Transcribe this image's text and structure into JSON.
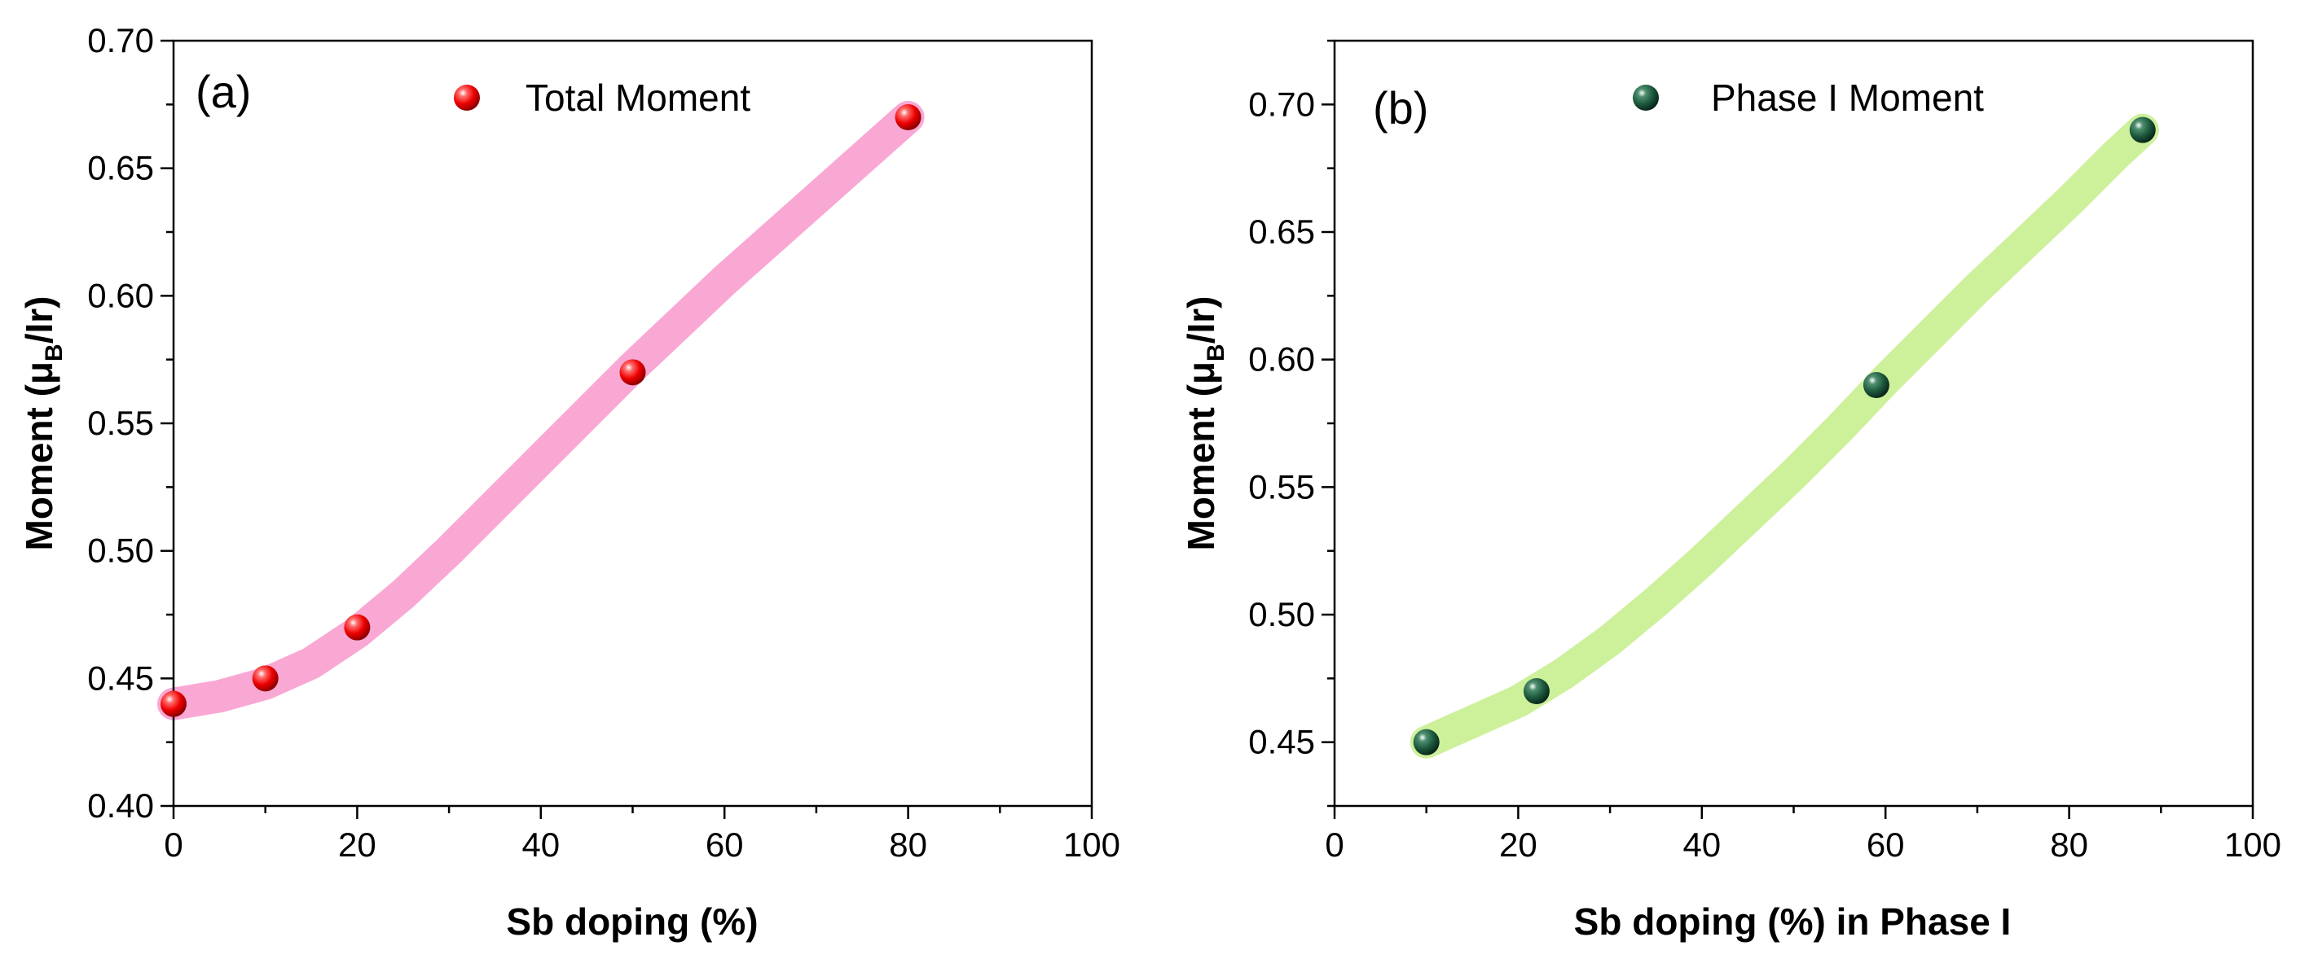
{
  "chart_data": [
    {
      "type": "scatter",
      "panel_label": "(a)",
      "legend": "Total Moment",
      "xlabel": "Sb doping (%)",
      "ylabel": "Moment (μB/Ir)",
      "ylabel_parts": {
        "main": "Moment (μ",
        "sub": "B",
        "tail": "/Ir)"
      },
      "xlim": [
        0,
        100
      ],
      "ylim": [
        0.4,
        0.7
      ],
      "xticks": [
        0,
        20,
        40,
        60,
        80,
        100
      ],
      "xtick_labels": [
        "0",
        "20",
        "40",
        "60",
        "80",
        "100"
      ],
      "yticks": [
        0.4,
        0.45,
        0.5,
        0.55,
        0.6,
        0.65,
        0.7
      ],
      "ytick_labels": [
        "0.40",
        "0.45",
        "0.50",
        "0.55",
        "0.60",
        "0.65",
        "0.70"
      ],
      "x": [
        0,
        10,
        20,
        50,
        80
      ],
      "y": [
        0.44,
        0.45,
        0.47,
        0.57,
        0.67
      ],
      "trend": {
        "x": [
          0,
          5,
          10,
          15,
          20,
          25,
          30,
          35,
          40,
          45,
          50,
          55,
          60,
          65,
          70,
          75,
          80
        ],
        "y": [
          0.44,
          0.443,
          0.448,
          0.456,
          0.468,
          0.483,
          0.5,
          0.518,
          0.536,
          0.554,
          0.572,
          0.589,
          0.606,
          0.622,
          0.638,
          0.654,
          0.67
        ]
      },
      "marker_color": "#ff1a1a",
      "band_color": "#f9a8d4"
    },
    {
      "type": "scatter",
      "panel_label": "(b)",
      "legend": "Phase I Moment",
      "xlabel": "Sb doping (%) in Phase I",
      "ylabel": "Moment (μB/Ir)",
      "ylabel_parts": {
        "main": "Moment (μ",
        "sub": "B",
        "tail": "/Ir)"
      },
      "xlim": [
        0,
        100
      ],
      "ylim": [
        0.425,
        0.725
      ],
      "xticks": [
        0,
        20,
        40,
        60,
        80,
        100
      ],
      "xtick_labels": [
        "0",
        "20",
        "40",
        "60",
        "80",
        "100"
      ],
      "yticks": [
        0.45,
        0.5,
        0.55,
        0.6,
        0.65,
        0.7
      ],
      "ytick_labels": [
        "0.45",
        "0.50",
        "0.55",
        "0.60",
        "0.65",
        "0.70"
      ],
      "x": [
        10,
        22,
        59,
        88
      ],
      "y": [
        0.45,
        0.47,
        0.59,
        0.69
      ],
      "trend": {
        "x": [
          10,
          15,
          20,
          25,
          30,
          35,
          40,
          45,
          50,
          55,
          60,
          65,
          70,
          75,
          80,
          85,
          88
        ],
        "y": [
          0.45,
          0.458,
          0.466,
          0.477,
          0.49,
          0.505,
          0.521,
          0.538,
          0.555,
          0.573,
          0.592,
          0.61,
          0.628,
          0.645,
          0.662,
          0.68,
          0.69
        ]
      },
      "marker_color": "#1e5a3e",
      "band_color": "#cdf09a"
    }
  ]
}
